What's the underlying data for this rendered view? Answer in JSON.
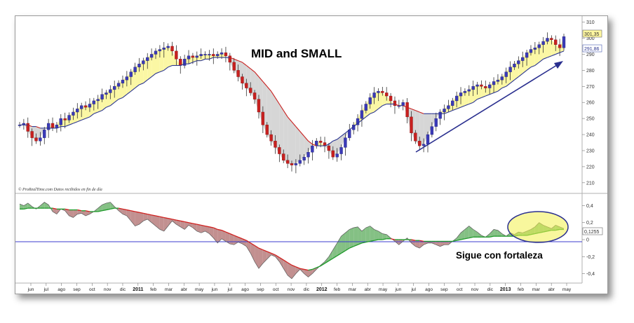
{
  "chart_data": [
    {
      "type": "candlestick",
      "title": "MID and SMALL",
      "credit": "© ProRealTime.com  Datos recibidos en fin de día",
      "ylim": [
        206,
        312
      ],
      "y_ticks": [
        "210",
        "220",
        "230",
        "240",
        "250",
        "260",
        "270",
        "280",
        "290",
        "300",
        "310"
      ],
      "last_price_label": "301,35",
      "moving_average_label": "291,86",
      "x_month_labels": [
        "jun",
        "jul",
        "ago",
        "sep",
        "oct",
        "nov",
        "dic",
        "2011",
        "feb",
        "mar",
        "abr",
        "may",
        "jun",
        "jul",
        "ago",
        "sep",
        "oct",
        "nov",
        "dic",
        "2012",
        "feb",
        "mar",
        "abr",
        "may",
        "jun",
        "jul",
        "ago",
        "sep",
        "oct",
        "nov",
        "dic",
        "2013",
        "feb",
        "mar",
        "abr",
        "may"
      ],
      "price_series": [
        246,
        247,
        242,
        238,
        236,
        238,
        243,
        247,
        244,
        246,
        250,
        249,
        252,
        254,
        256,
        258,
        257,
        259,
        261,
        262,
        265,
        266,
        268,
        270,
        272,
        274,
        276,
        279,
        282,
        284,
        286,
        288,
        290,
        292,
        293,
        294,
        295,
        292,
        287,
        283,
        287,
        289,
        288,
        289,
        290,
        290,
        290,
        289,
        290,
        291,
        289,
        285,
        280,
        276,
        272,
        269,
        266,
        262,
        254,
        246,
        240,
        236,
        232,
        228,
        224,
        222,
        221,
        222,
        224,
        226,
        229,
        233,
        236,
        235,
        233,
        230,
        226,
        228,
        232,
        238,
        243,
        246,
        250,
        255,
        259,
        263,
        266,
        267,
        266,
        264,
        261,
        258,
        258,
        260,
        251,
        241,
        236,
        233,
        234,
        240,
        245,
        250,
        254,
        256,
        258,
        261,
        264,
        266,
        267,
        268,
        270,
        271,
        270,
        269,
        271,
        273,
        274,
        276,
        279,
        282,
        284,
        286,
        288,
        291,
        293,
        294,
        296,
        298,
        300,
        299,
        296,
        294,
        301
      ],
      "ma_series": [
        246,
        246,
        246,
        245,
        245,
        244,
        244,
        244,
        244,
        244,
        245,
        245,
        246,
        247,
        248,
        249,
        250,
        251,
        253,
        254,
        255,
        257,
        258,
        260,
        262,
        263,
        265,
        267,
        269,
        271,
        272,
        274,
        276,
        278,
        279,
        280,
        282,
        283,
        283,
        283,
        284,
        284,
        285,
        286,
        286,
        287,
        287,
        288,
        288,
        288,
        288,
        288,
        287,
        286,
        285,
        283,
        281,
        279,
        276,
        273,
        270,
        267,
        263,
        259,
        255,
        251,
        248,
        245,
        242,
        239,
        236,
        234,
        233,
        233,
        233,
        234,
        236,
        237,
        239,
        241,
        243,
        245,
        247,
        249,
        251,
        253,
        254,
        256,
        258,
        259,
        259,
        259,
        258,
        258,
        257,
        256,
        255,
        254,
        253,
        253,
        253,
        253,
        253,
        253,
        254,
        255,
        256,
        257,
        258,
        259,
        260,
        262,
        263,
        264,
        265,
        266,
        267,
        269,
        270,
        272,
        274,
        276,
        278,
        280,
        282,
        283,
        285,
        287,
        288,
        289,
        290,
        291,
        292
      ],
      "annotations": []
    },
    {
      "type": "line",
      "title": "",
      "ylim": [
        -0.47,
        0.47
      ],
      "y_ticks": [
        "0,4",
        "0,2",
        "0",
        "-0,2",
        "-0,4"
      ],
      "last_value_label": "0,1255",
      "annotation": "Sigue con fortaleza",
      "oscillator_series": [
        0.42,
        0.4,
        0.43,
        0.39,
        0.36,
        0.4,
        0.44,
        0.41,
        0.33,
        0.3,
        0.36,
        0.34,
        0.28,
        0.26,
        0.3,
        0.31,
        0.28,
        0.3,
        0.33,
        0.37,
        0.41,
        0.43,
        0.44,
        0.39,
        0.34,
        0.3,
        0.28,
        0.22,
        0.16,
        0.18,
        0.22,
        0.24,
        0.2,
        0.16,
        0.12,
        0.1,
        0.16,
        0.22,
        0.18,
        0.15,
        0.12,
        0.17,
        0.14,
        0.1,
        0.08,
        0.1,
        0.07,
        0.02,
        -0.04,
        0.01,
        -0.02,
        -0.05,
        -0.06,
        -0.03,
        -0.05,
        -0.08,
        -0.16,
        -0.26,
        -0.34,
        -0.28,
        -0.23,
        -0.18,
        -0.2,
        -0.26,
        -0.34,
        -0.42,
        -0.46,
        -0.4,
        -0.35,
        -0.4,
        -0.44,
        -0.4,
        -0.35,
        -0.3,
        -0.26,
        -0.2,
        -0.12,
        -0.04,
        0.04,
        0.08,
        0.12,
        0.14,
        0.15,
        0.1,
        0.14,
        0.16,
        0.12,
        0.1,
        0.07,
        0.06,
        0.02,
        -0.02,
        -0.06,
        -0.02,
        0.02,
        -0.04,
        -0.08,
        -0.1,
        -0.06,
        -0.04,
        -0.04,
        -0.06,
        -0.08,
        -0.06,
        -0.06,
        -0.02,
        0.02,
        0.08,
        0.12,
        0.16,
        0.12,
        0.09,
        0.05,
        0.03,
        0.07,
        0.12,
        0.11,
        0.07,
        0.04,
        0.08,
        0.06,
        0.09,
        0.08,
        0.1,
        0.12,
        0.15,
        0.2,
        0.17,
        0.15,
        0.13,
        0.17,
        0.15,
        0.13
      ],
      "signal_series": [
        0.36,
        0.36,
        0.37,
        0.37,
        0.37,
        0.37,
        0.37,
        0.37,
        0.37,
        0.36,
        0.36,
        0.36,
        0.35,
        0.35,
        0.35,
        0.34,
        0.34,
        0.33,
        0.33,
        0.33,
        0.34,
        0.35,
        0.36,
        0.37,
        0.37,
        0.36,
        0.35,
        0.34,
        0.33,
        0.32,
        0.31,
        0.3,
        0.29,
        0.28,
        0.27,
        0.26,
        0.25,
        0.24,
        0.23,
        0.22,
        0.21,
        0.2,
        0.19,
        0.18,
        0.17,
        0.16,
        0.15,
        0.14,
        0.12,
        0.11,
        0.09,
        0.07,
        0.05,
        0.03,
        0.01,
        -0.01,
        -0.04,
        -0.07,
        -0.1,
        -0.12,
        -0.14,
        -0.16,
        -0.18,
        -0.21,
        -0.24,
        -0.27,
        -0.3,
        -0.32,
        -0.34,
        -0.35,
        -0.36,
        -0.35,
        -0.33,
        -0.31,
        -0.28,
        -0.25,
        -0.22,
        -0.19,
        -0.16,
        -0.13,
        -0.1,
        -0.08,
        -0.06,
        -0.04,
        -0.03,
        -0.02,
        -0.01,
        0.0,
        0.0,
        0.01,
        0.01,
        0.0,
        0.0,
        0.0,
        0.0,
        0.0,
        -0.01,
        -0.01,
        -0.02,
        -0.02,
        -0.02,
        -0.02,
        -0.02,
        -0.02,
        -0.02,
        -0.02,
        -0.01,
        0.0,
        0.01,
        0.02,
        0.03,
        0.03,
        0.03,
        0.03,
        0.03,
        0.04,
        0.04,
        0.04,
        0.04,
        0.04,
        0.04,
        0.05,
        0.05,
        0.05,
        0.06,
        0.07,
        0.08,
        0.09,
        0.1,
        0.11,
        0.11,
        0.12,
        0.12
      ],
      "annotations": []
    }
  ]
}
